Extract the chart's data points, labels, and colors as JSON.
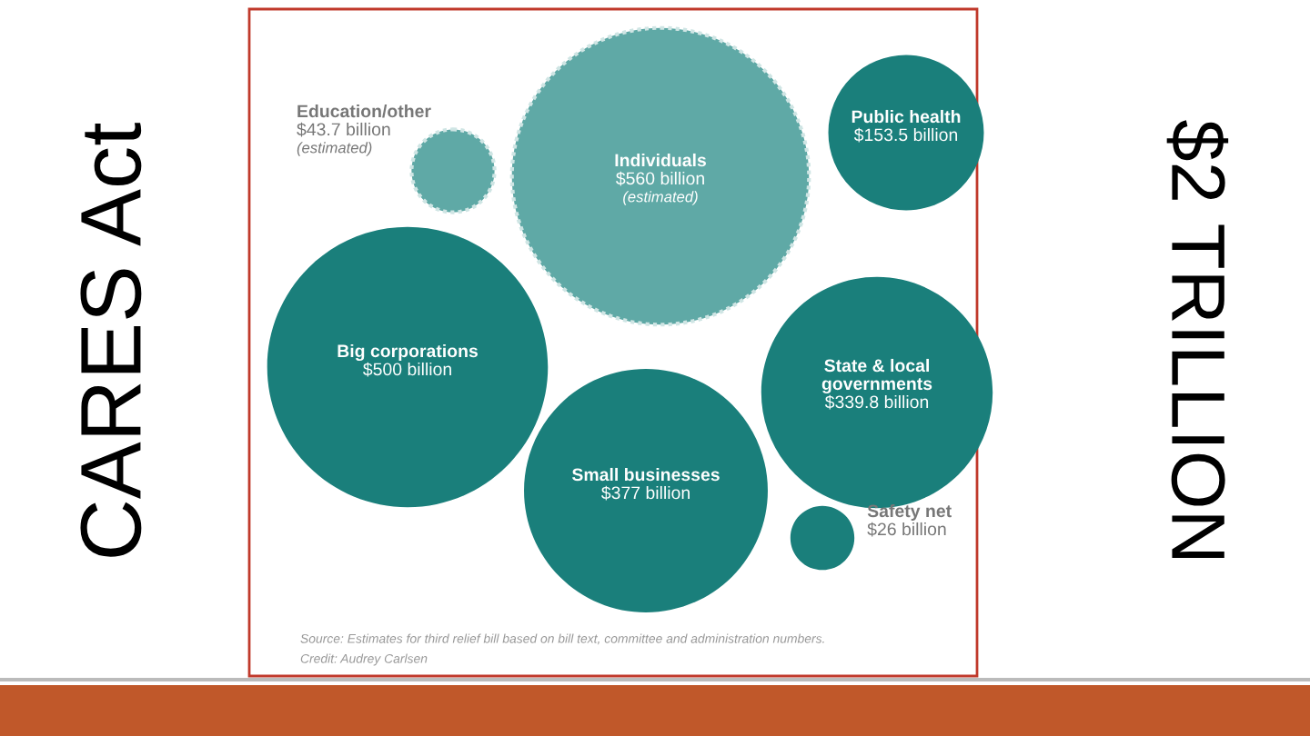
{
  "chart_data": {
    "type": "other",
    "title": "CARES Act",
    "subtitle": "$2 TRILLION",
    "categories": [
      "Education/other",
      "Individuals",
      "Public health",
      "Big corporations",
      "State & local governments",
      "Small businesses",
      "Safety net"
    ],
    "values": [
      43.7,
      560,
      153.5,
      500,
      339.8,
      377,
      26
    ],
    "value_labels": [
      "$43.7 billion",
      "$560 billion",
      "$153.5 billion",
      "$500 billion",
      "$339.8 billion",
      "$377 billion",
      "$26 billion"
    ],
    "colors": [
      "#5fa9a6",
      "#5fa9a6",
      "#1a7f7b",
      "#1a7f7b",
      "#1a7f7b",
      "#1a7f7b",
      "#1a7f7b"
    ],
    "annotations": [
      {
        "text": "(estimated)",
        "x": "Education/other"
      },
      {
        "text": "(estimated)",
        "x": "Individuals"
      },
      "Source: Estimates for third relief bill based on bill text, committee and administration numbers.",
      "Credit: Audrey Carlsen"
    ]
  }
}
